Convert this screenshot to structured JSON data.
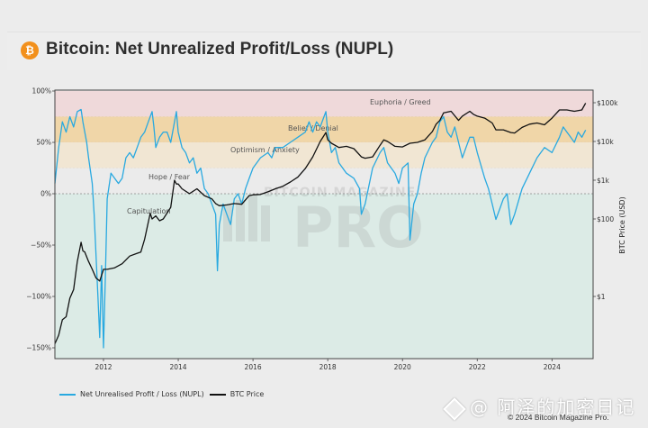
{
  "header": {
    "logo_icon": "bitcoin-icon",
    "logo_glyph": "₿",
    "title": "Bitcoin: Net Unrealized Profit/Loss (NUPL)"
  },
  "legend": {
    "items": [
      {
        "label": "Net Unrealised Profit / Loss (NUPL)",
        "color": "#29a9e0"
      },
      {
        "label": "BTC Price",
        "color": "#111111"
      }
    ]
  },
  "footer": {
    "watermark": "@ 阿泽的加密日记",
    "copyright": "© 2024 Bitcoin Magazine Pro."
  },
  "chart_watermark": {
    "line1": "BITCOIN MAGAZINE",
    "line2": "PRO"
  },
  "chart_data": {
    "type": "line",
    "title": "Bitcoin: Net Unrealized Profit/Loss (NUPL)",
    "xlabel": "",
    "ylabel_left": "",
    "ylabel_right": "BTC Price (USD)",
    "x_ticks": [
      "2012",
      "2014",
      "2016",
      "2018",
      "2020",
      "2022",
      "2024"
    ],
    "xlim": [
      2010.7,
      2025.1
    ],
    "y_left": {
      "ticks": [
        "100%",
        "50%",
        "0%",
        "−50%",
        "−100%",
        "−150%"
      ],
      "tick_values": [
        100,
        50,
        0,
        -50,
        -100,
        -150
      ],
      "lim": [
        -160,
        100
      ]
    },
    "y_right": {
      "scale": "log",
      "ticks": [
        "$100k",
        "$10k",
        "$1k",
        "$100",
        "$1"
      ],
      "tick_values": [
        100000,
        10000,
        1000,
        100,
        1
      ],
      "lim": [
        0.06,
        200000
      ]
    },
    "bands": [
      {
        "label": "Euphoria / Greed",
        "from": 75,
        "to": 100,
        "color": "#efd9da"
      },
      {
        "label": "Belief / Denial",
        "from": 50,
        "to": 75,
        "color": "#f0d6a8"
      },
      {
        "label": "Optimism / Anxiety",
        "from": 25,
        "to": 50,
        "color": "#f1e6d3"
      },
      {
        "label": "Hope / Fear",
        "from": 0,
        "to": 25,
        "color": "#ebebeb"
      },
      {
        "label": "Capitulation",
        "from": -160,
        "to": 0,
        "color": "#dcebe6"
      }
    ],
    "series": [
      {
        "name": "Net Unrealised Profit / Loss (NUPL)",
        "axis": "left",
        "color": "#29a9e0",
        "x": [
          2010.7,
          2010.8,
          2010.9,
          2011.0,
          2011.1,
          2011.2,
          2011.3,
          2011.4,
          2011.45,
          2011.55,
          2011.6,
          2011.7,
          2011.75,
          2011.8,
          2011.85,
          2011.9,
          2011.95,
          2012.0,
          2012.05,
          2012.1,
          2012.2,
          2012.3,
          2012.4,
          2012.5,
          2012.6,
          2012.7,
          2012.8,
          2012.9,
          2013.0,
          2013.1,
          2013.2,
          2013.3,
          2013.35,
          2013.4,
          2013.5,
          2013.6,
          2013.7,
          2013.8,
          2013.9,
          2013.95,
          2014.0,
          2014.1,
          2014.2,
          2014.3,
          2014.4,
          2014.5,
          2014.6,
          2014.7,
          2014.8,
          2014.9,
          2015.0,
          2015.05,
          2015.1,
          2015.2,
          2015.3,
          2015.4,
          2015.5,
          2015.6,
          2015.7,
          2015.8,
          2015.9,
          2016.0,
          2016.2,
          2016.4,
          2016.5,
          2016.6,
          2016.8,
          2017.0,
          2017.2,
          2017.4,
          2017.5,
          2017.6,
          2017.7,
          2017.8,
          2017.9,
          2017.95,
          2018.0,
          2018.1,
          2018.2,
          2018.3,
          2018.5,
          2018.7,
          2018.85,
          2018.9,
          2019.0,
          2019.2,
          2019.4,
          2019.5,
          2019.6,
          2019.8,
          2019.9,
          2020.0,
          2020.15,
          2020.2,
          2020.3,
          2020.4,
          2020.5,
          2020.6,
          2020.8,
          2020.9,
          2021.0,
          2021.1,
          2021.2,
          2021.3,
          2021.4,
          2021.5,
          2021.6,
          2021.7,
          2021.8,
          2021.9,
          2022.0,
          2022.2,
          2022.3,
          2022.4,
          2022.5,
          2022.6,
          2022.7,
          2022.8,
          2022.9,
          2023.0,
          2023.2,
          2023.4,
          2023.6,
          2023.8,
          2024.0,
          2024.2,
          2024.3,
          2024.4,
          2024.5,
          2024.6,
          2024.7,
          2024.8,
          2024.9
        ],
        "y": [
          10,
          45,
          70,
          60,
          75,
          65,
          80,
          82,
          70,
          50,
          35,
          10,
          -20,
          -60,
          -100,
          -140,
          -70,
          -150,
          -80,
          -5,
          20,
          15,
          10,
          15,
          35,
          40,
          35,
          45,
          55,
          60,
          70,
          80,
          65,
          45,
          55,
          60,
          60,
          50,
          70,
          80,
          60,
          45,
          40,
          30,
          35,
          20,
          25,
          5,
          0,
          -10,
          -20,
          -75,
          -30,
          -10,
          -20,
          -30,
          -5,
          0,
          -10,
          5,
          15,
          25,
          35,
          40,
          35,
          45,
          45,
          50,
          55,
          60,
          70,
          60,
          70,
          65,
          75,
          80,
          60,
          40,
          45,
          30,
          20,
          15,
          5,
          -20,
          -10,
          25,
          40,
          45,
          30,
          20,
          10,
          25,
          30,
          -45,
          -10,
          0,
          20,
          35,
          50,
          55,
          70,
          75,
          60,
          55,
          65,
          50,
          35,
          45,
          55,
          55,
          40,
          15,
          5,
          -10,
          -25,
          -15,
          -5,
          0,
          -30,
          -20,
          5,
          20,
          35,
          45,
          40,
          55,
          65,
          60,
          55,
          50,
          60,
          55,
          62
        ]
      },
      {
        "name": "BTC Price",
        "axis": "right",
        "color": "#111111",
        "x": [
          2010.7,
          2010.8,
          2010.9,
          2011.0,
          2011.1,
          2011.2,
          2011.3,
          2011.4,
          2011.45,
          2011.5,
          2011.6,
          2011.7,
          2011.8,
          2011.9,
          2012.0,
          2012.1,
          2012.3,
          2012.5,
          2012.7,
          2012.9,
          2013.0,
          2013.1,
          2013.25,
          2013.3,
          2013.4,
          2013.5,
          2013.6,
          2013.8,
          2013.9,
          2013.95,
          2014.0,
          2014.1,
          2014.3,
          2014.5,
          2014.7,
          2014.9,
          2015.0,
          2015.1,
          2015.3,
          2015.5,
          2015.7,
          2015.9,
          2016.0,
          2016.2,
          2016.4,
          2016.6,
          2016.8,
          2017.0,
          2017.2,
          2017.4,
          2017.6,
          2017.8,
          2017.95,
          2018.0,
          2018.1,
          2018.3,
          2018.5,
          2018.7,
          2018.9,
          2019.0,
          2019.2,
          2019.4,
          2019.5,
          2019.6,
          2019.8,
          2020.0,
          2020.2,
          2020.4,
          2020.6,
          2020.8,
          2020.9,
          2021.0,
          2021.1,
          2021.3,
          2021.5,
          2021.6,
          2021.8,
          2021.9,
          2022.0,
          2022.2,
          2022.4,
          2022.5,
          2022.7,
          2022.9,
          2023.0,
          2023.2,
          2023.4,
          2023.6,
          2023.8,
          2024.0,
          2024.2,
          2024.4,
          2024.6,
          2024.8,
          2024.9
        ],
        "y": [
          0.06,
          0.1,
          0.25,
          0.3,
          0.9,
          1.5,
          8,
          25,
          15,
          14,
          8,
          5,
          3,
          2.5,
          5,
          5,
          5.5,
          7,
          11,
          13,
          14,
          30,
          140,
          100,
          120,
          90,
          100,
          200,
          1000,
          800,
          800,
          600,
          450,
          600,
          400,
          330,
          250,
          220,
          230,
          250,
          240,
          400,
          420,
          430,
          500,
          600,
          700,
          900,
          1200,
          2000,
          4000,
          10000,
          17000,
          11000,
          9000,
          7000,
          7500,
          6500,
          4000,
          3700,
          4000,
          8000,
          11000,
          10000,
          7500,
          7200,
          9000,
          9500,
          11000,
          18000,
          28000,
          35000,
          55000,
          60000,
          35000,
          45000,
          60000,
          50000,
          45000,
          40000,
          30000,
          20000,
          20000,
          17000,
          16500,
          23000,
          28000,
          30000,
          27000,
          40000,
          65000,
          65000,
          60000,
          65000,
          98000
        ]
      }
    ]
  }
}
